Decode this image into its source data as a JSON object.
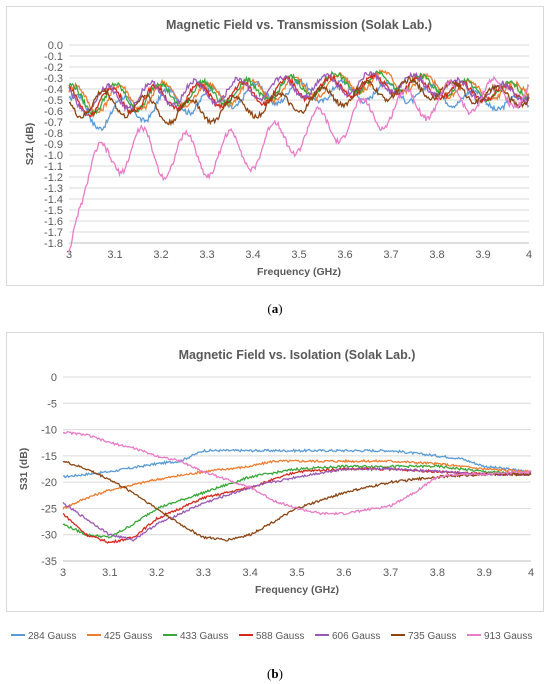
{
  "captions": {
    "a_prefix": "(",
    "a_letter": "a",
    "a_suffix": ")",
    "b_prefix": "(",
    "b_letter": "b",
    "b_suffix": ")"
  },
  "chart_data": [
    {
      "type": "line",
      "title": "Magnetic Field vs. Transmission (Solak Lab.)",
      "xlabel": "Frequency (GHz)",
      "ylabel": "S21 (dB)",
      "xlim": [
        3,
        4
      ],
      "ylim": [
        -1.8,
        0
      ],
      "xticks": [
        "3",
        "3.1",
        "3.2",
        "3.3",
        "3.4",
        "3.5",
        "3.6",
        "3.7",
        "3.8",
        "3.9",
        "4"
      ],
      "yticks": [
        "0.0",
        "-0.1",
        "-0.2",
        "-0.3",
        "-0.4",
        "-0.5",
        "-0.6",
        "-0.7",
        "-0.8",
        "-0.9",
        "-1.0",
        "-1.1",
        "-1.2",
        "-1.3",
        "-1.4",
        "-1.5",
        "-1.6",
        "-1.7",
        "-1.8"
      ],
      "grid": "horizontal",
      "legend": "none",
      "series": [
        {
          "color": "#5b9bd5",
          "x": [
            3.0,
            3.05,
            3.1,
            3.15,
            3.2,
            3.3,
            3.4,
            3.5,
            3.6,
            3.7,
            3.8,
            3.9,
            4.0
          ],
          "y": [
            -0.5,
            -0.68,
            -0.58,
            -0.6,
            -0.52,
            -0.5,
            -0.45,
            -0.42,
            -0.42,
            -0.42,
            -0.45,
            -0.5,
            -0.55
          ]
        },
        {
          "color": "#ed7d31",
          "x": [
            3.0,
            3.05,
            3.1,
            3.15,
            3.2,
            3.3,
            3.4,
            3.5,
            3.6,
            3.7,
            3.8,
            3.9,
            4.0
          ],
          "y": [
            -0.48,
            -0.5,
            -0.48,
            -0.48,
            -0.45,
            -0.45,
            -0.42,
            -0.4,
            -0.35,
            -0.32,
            -0.38,
            -0.42,
            -0.42
          ]
        },
        {
          "color": "#3aa63a",
          "x": [
            3.0,
            3.05,
            3.1,
            3.15,
            3.2,
            3.3,
            3.4,
            3.5,
            3.6,
            3.7,
            3.8,
            3.9,
            4.0
          ],
          "y": [
            -0.48,
            -0.5,
            -0.47,
            -0.48,
            -0.45,
            -0.44,
            -0.42,
            -0.38,
            -0.34,
            -0.33,
            -0.38,
            -0.42,
            -0.42
          ]
        },
        {
          "color": "#d42a1e",
          "x": [
            3.0,
            3.05,
            3.1,
            3.15,
            3.2,
            3.3,
            3.4,
            3.5,
            3.6,
            3.7,
            3.8,
            3.9,
            4.0
          ],
          "y": [
            -0.5,
            -0.52,
            -0.5,
            -0.5,
            -0.48,
            -0.46,
            -0.44,
            -0.4,
            -0.38,
            -0.36,
            -0.4,
            -0.44,
            -0.45
          ]
        },
        {
          "color": "#9b59b6",
          "x": [
            3.0,
            3.05,
            3.1,
            3.15,
            3.2,
            3.3,
            3.4,
            3.5,
            3.6,
            3.7,
            3.8,
            3.9,
            4.0
          ],
          "y": [
            -0.48,
            -0.5,
            -0.48,
            -0.46,
            -0.45,
            -0.43,
            -0.4,
            -0.38,
            -0.35,
            -0.34,
            -0.38,
            -0.42,
            -0.42
          ]
        },
        {
          "color": "#8b4513",
          "x": [
            3.0,
            3.05,
            3.1,
            3.15,
            3.2,
            3.3,
            3.4,
            3.5,
            3.6,
            3.7,
            3.8,
            3.9,
            4.0
          ],
          "y": [
            -0.52,
            -0.55,
            -0.52,
            -0.55,
            -0.6,
            -0.6,
            -0.55,
            -0.52,
            -0.45,
            -0.4,
            -0.4,
            -0.45,
            -0.48
          ]
        },
        {
          "color": "#e87cc8",
          "x": [
            3.0,
            3.01,
            3.02,
            3.05,
            3.1,
            3.15,
            3.2,
            3.3,
            3.4,
            3.5,
            3.6,
            3.7,
            3.8,
            3.9,
            4.0
          ],
          "y": [
            -1.78,
            -1.5,
            -1.3,
            -1.2,
            -0.95,
            -0.95,
            -1.0,
            -1.0,
            -0.95,
            -0.8,
            -0.7,
            -0.58,
            -0.5,
            -0.46,
            -0.42
          ]
        }
      ]
    },
    {
      "type": "line",
      "title": "Magnetic Field vs. Isolation (Solak Lab.)",
      "xlabel": "Frequency (GHz)",
      "ylabel": "S31 (dB)",
      "xlim": [
        3,
        4
      ],
      "ylim": [
        -35,
        0
      ],
      "xticks": [
        "3",
        "3.1",
        "3.2",
        "3.3",
        "3.4",
        "3.5",
        "3.6",
        "3.7",
        "3.8",
        "3.9",
        "4"
      ],
      "yticks": [
        "0",
        "-5",
        "-10",
        "-15",
        "-20",
        "-25",
        "-30",
        "-35"
      ],
      "grid": "horizontal",
      "legend": "bottom",
      "series": [
        {
          "name": "284 Gauss",
          "color": "#5b9bd5",
          "x": [
            3.0,
            3.1,
            3.2,
            3.25,
            3.3,
            3.4,
            3.5,
            3.6,
            3.7,
            3.8,
            3.85,
            3.9,
            4.0
          ],
          "y": [
            -19,
            -18,
            -16.5,
            -16,
            -14,
            -14,
            -14,
            -14,
            -14,
            -15,
            -15.5,
            -17,
            -18
          ]
        },
        {
          "name": "425 Gauss",
          "color": "#ed7d31",
          "x": [
            3.0,
            3.05,
            3.1,
            3.2,
            3.3,
            3.35,
            3.4,
            3.45,
            3.5,
            3.6,
            3.7,
            3.8,
            3.9,
            4.0
          ],
          "y": [
            -25,
            -23,
            -21.5,
            -19.5,
            -18,
            -17.5,
            -17,
            -16,
            -16,
            -16,
            -16,
            -16.5,
            -17.5,
            -18
          ]
        },
        {
          "name": "433 Gauss",
          "color": "#3aa63a",
          "x": [
            3.0,
            3.05,
            3.1,
            3.15,
            3.2,
            3.3,
            3.4,
            3.5,
            3.6,
            3.7,
            3.8,
            3.9,
            4.0
          ],
          "y": [
            -28,
            -30,
            -30.5,
            -28,
            -25,
            -22,
            -19,
            -17.5,
            -17,
            -17,
            -17,
            -18,
            -18.5
          ]
        },
        {
          "name": "588 Gauss",
          "color": "#d42a1e",
          "x": [
            3.0,
            3.05,
            3.1,
            3.15,
            3.2,
            3.3,
            3.4,
            3.5,
            3.6,
            3.7,
            3.8,
            3.9,
            4.0
          ],
          "y": [
            -26,
            -30,
            -31.5,
            -30.5,
            -27,
            -23,
            -21,
            -18,
            -17.5,
            -17.5,
            -18,
            -18.5,
            -18.5
          ]
        },
        {
          "name": "606 Gauss",
          "color": "#9b59b6",
          "x": [
            3.0,
            3.05,
            3.1,
            3.15,
            3.2,
            3.3,
            3.4,
            3.5,
            3.6,
            3.7,
            3.8,
            3.9,
            4.0
          ],
          "y": [
            -24,
            -27,
            -30,
            -31,
            -28,
            -24,
            -21,
            -19,
            -17.5,
            -17.5,
            -18,
            -18.5,
            -18.5
          ]
        },
        {
          "name": "735 Gauss",
          "color": "#8b4513",
          "x": [
            3.0,
            3.05,
            3.1,
            3.15,
            3.2,
            3.25,
            3.3,
            3.35,
            3.4,
            3.5,
            3.6,
            3.65,
            3.7,
            3.8,
            3.9,
            4.0
          ],
          "y": [
            -16,
            -17.5,
            -19.5,
            -22,
            -25,
            -28,
            -30.5,
            -31,
            -30,
            -25,
            -22,
            -21,
            -20,
            -19,
            -18.5,
            -18.5
          ]
        },
        {
          "name": "913 Gauss",
          "color": "#e87cc8",
          "x": [
            3.0,
            3.05,
            3.1,
            3.15,
            3.2,
            3.25,
            3.3,
            3.4,
            3.45,
            3.5,
            3.55,
            3.6,
            3.7,
            3.75,
            3.8,
            3.85,
            3.9,
            4.0
          ],
          "y": [
            -10.5,
            -11,
            -12.5,
            -13.5,
            -15,
            -16,
            -18,
            -21,
            -23.5,
            -25,
            -26,
            -26,
            -24.5,
            -22,
            -19,
            -18.5,
            -18.5,
            -18
          ]
        }
      ]
    }
  ]
}
